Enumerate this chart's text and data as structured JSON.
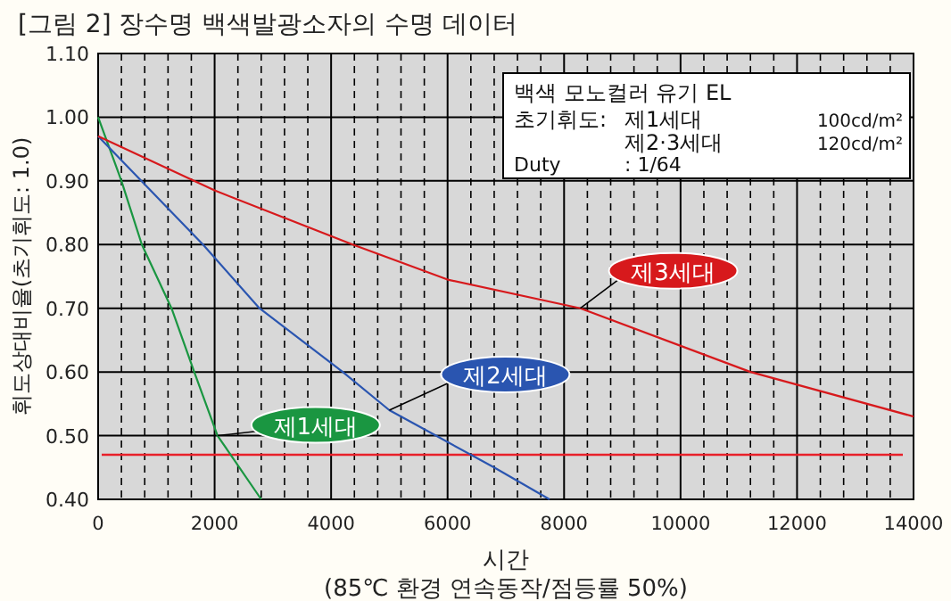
{
  "chart_data": {
    "type": "line",
    "title": "[그림 2] 장수명 백색발광소자의 수명 데이터",
    "xlabel": "시간",
    "ylabel": "휘도상대비율(초기휘도: 1.0)",
    "annotations": [
      "(85℃ 환경 연속동작/점등률 50%)",
      "백색 모노컬러 유기 EL",
      "초기휘도:",
      "제1세대",
      "100cd/m²",
      "제2·3세대",
      "120cd/m²",
      "Duty",
      ": 1/64"
    ],
    "series": [
      {
        "name": "제1세대",
        "color": "#1a9641",
        "x": [
          0,
          400,
          750,
          1260,
          1650,
          2050,
          2800
        ],
        "values": [
          1.0,
          0.9,
          0.8,
          0.7,
          0.6,
          0.5,
          0.4
        ]
      },
      {
        "name": "제2세대",
        "color": "#2a55b0",
        "x": [
          0,
          1800,
          2770,
          4200,
          5000,
          5800,
          6800,
          7750
        ],
        "values": [
          0.97,
          0.8,
          0.7,
          0.6,
          0.54,
          0.5,
          0.45,
          0.4
        ]
      },
      {
        "name": "제3세대",
        "color": "#d7191c",
        "x": [
          0,
          2000,
          4370,
          6000,
          8280,
          11200,
          14000
        ],
        "values": [
          0.97,
          0.885,
          0.8,
          0.745,
          0.7,
          0.6,
          0.53
        ]
      }
    ],
    "ref_lines": [
      {
        "axis": "y",
        "value": 0.47,
        "color": "#e8202a"
      }
    ],
    "xlim": [
      0,
      14000
    ],
    "xticks": [
      0,
      2000,
      4000,
      6000,
      8000,
      10000,
      12000,
      14000
    ],
    "ylim": [
      0.4,
      1.1
    ],
    "yticks": [
      {
        "value": 0.4,
        "label": "0.40"
      },
      {
        "value": 0.5,
        "label": "0.50"
      },
      {
        "value": 0.6,
        "label": "0.60"
      },
      {
        "value": 0.7,
        "label": "0.70"
      },
      {
        "value": 0.8,
        "label": "0.80"
      },
      {
        "value": 0.9,
        "label": "0.90"
      },
      {
        "value": 1.0,
        "label": "1.00"
      },
      {
        "value": 1.1,
        "label": "1.10"
      }
    ],
    "grid": true,
    "marker": "none",
    "line_style": "solid"
  }
}
